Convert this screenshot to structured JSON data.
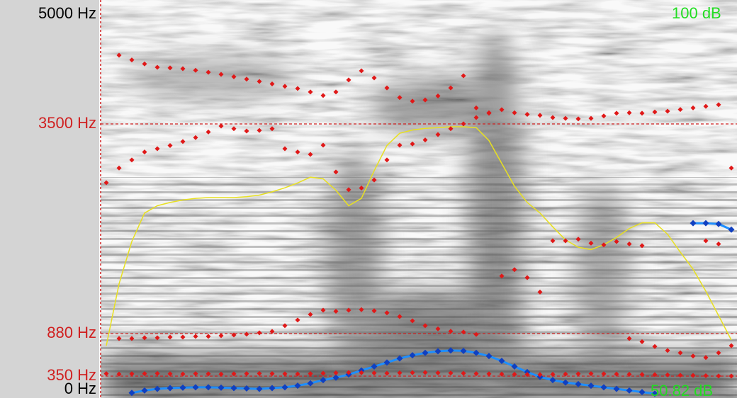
{
  "spectrogram": {
    "frequency_range": [
      0,
      5000
    ],
    "frequency_labels": [
      {
        "value": 5000,
        "label": "5000 Hz"
      },
      {
        "value": 0,
        "label": "0 Hz"
      }
    ],
    "cursor_frequencies": [
      {
        "value": 3500,
        "label": "3500 Hz"
      },
      {
        "value": 880,
        "label": "880 Hz"
      },
      {
        "value": 350,
        "label": "350 Hz"
      }
    ],
    "intensity_range": [
      {
        "value": 50.82,
        "label": "50.82 dB"
      },
      {
        "value": 100,
        "label": "100 dB"
      }
    ],
    "formant_color": "#e01818",
    "pitch_color": "#1e8fff",
    "intensity_color": "#e8e020",
    "label_color": "#d02020",
    "intensity_label_color": "#22dd22",
    "formants": [
      [
        380,
        375,
        378,
        380,
        382,
        378,
        376,
        380,
        378,
        375,
        378,
        380,
        382,
        380,
        378,
        376,
        380,
        385,
        390,
        395,
        392,
        388,
        385,
        390,
        392,
        395,
        390,
        388,
        385,
        380,
        378,
        375,
        372,
        370,
        368,
        372,
        375,
        378,
        380,
        378,
        375,
        372,
        370,
        368,
        365,
        360,
        358,
        355,
        352,
        350
      ],
      [
        null,
        819,
        819,
        828,
        828,
        837,
        837,
        846,
        846,
        855,
        864,
        873,
        890,
        908,
        980,
        1050,
        1120,
        1173,
        1160,
        1173,
        1180,
        1165,
        1140,
        1094,
        1040,
        980,
        940,
        910,
        900,
        870,
        null,
        1600,
        1680,
        1580,
        1400,
        null,
        null,
        null,
        null,
        null,
        null,
        819,
        780,
        720,
        670,
        640,
        600,
        581,
        640,
        730
      ],
      [
        2766,
        2950,
        3050,
        3150,
        3191,
        3230,
        3280,
        3330,
        3400,
        3474,
        3440,
        3412,
        3420,
        3440,
        3191,
        3150,
        3120,
        3235,
        2900,
        2678,
        2700,
        2800,
        3050,
        3235,
        3250,
        3300,
        3368,
        3440,
        3501,
        3580,
        3634,
        null,
        null,
        null,
        null,
        2040,
        2040,
        2060,
        2010,
        1990,
        2030,
        2000,
        1980,
        null,
        null,
        null,
        null,
        2040,
        2000,
        2950
      ],
      [
        null,
        4359,
        4300,
        4250,
        4208,
        4200,
        4190,
        4170,
        4146,
        4120,
        4090,
        4060,
        4031,
        4000,
        3970,
        3943,
        3900,
        3855,
        3899,
        4050,
        4164,
        4075,
        3950,
        3830,
        3784,
        3800,
        3850,
        3950,
        4102,
        3700,
        3640,
        3678,
        3640,
        3620,
        3607,
        3580,
        3570,
        3563,
        3570,
        3600,
        3634,
        3640,
        3634,
        3650,
        3660,
        3680,
        3700,
        3720,
        3740,
        null
      ]
    ],
    "pitch": [
      null,
      null,
      140,
      170,
      190,
      200,
      205,
      210,
      210,
      205,
      200,
      195,
      190,
      200,
      210,
      230,
      260,
      300,
      330,
      370,
      420,
      470,
      520,
      570,
      610,
      640,
      660,
      670,
      665,
      640,
      600,
      540,
      470,
      400,
      340,
      300,
      270,
      250,
      230,
      210,
      190,
      170,
      150,
      130,
      null,
      null,
      2260,
      2260,
      2250,
      2180
    ],
    "intensity": [
      58,
      65.6,
      70.8,
      74.3,
      75.2,
      75.6,
      75.9,
      76.1,
      76.2,
      76.2,
      76.2,
      76.3,
      76.5,
      76.9,
      77.4,
      78.0,
      78.7,
      78.5,
      77.1,
      75.2,
      76.1,
      79.5,
      82.6,
      84.1,
      84.5,
      84.7,
      84.8,
      84.9,
      84.9,
      84.8,
      83.2,
      80.4,
      77.6,
      75.6,
      74.3,
      72.6,
      71.0,
      70.1,
      69.8,
      70.4,
      71.3,
      72.4,
      73.1,
      73.1,
      71.7,
      69.5,
      67.4,
      64.7,
      61.7,
      58.7
    ]
  }
}
